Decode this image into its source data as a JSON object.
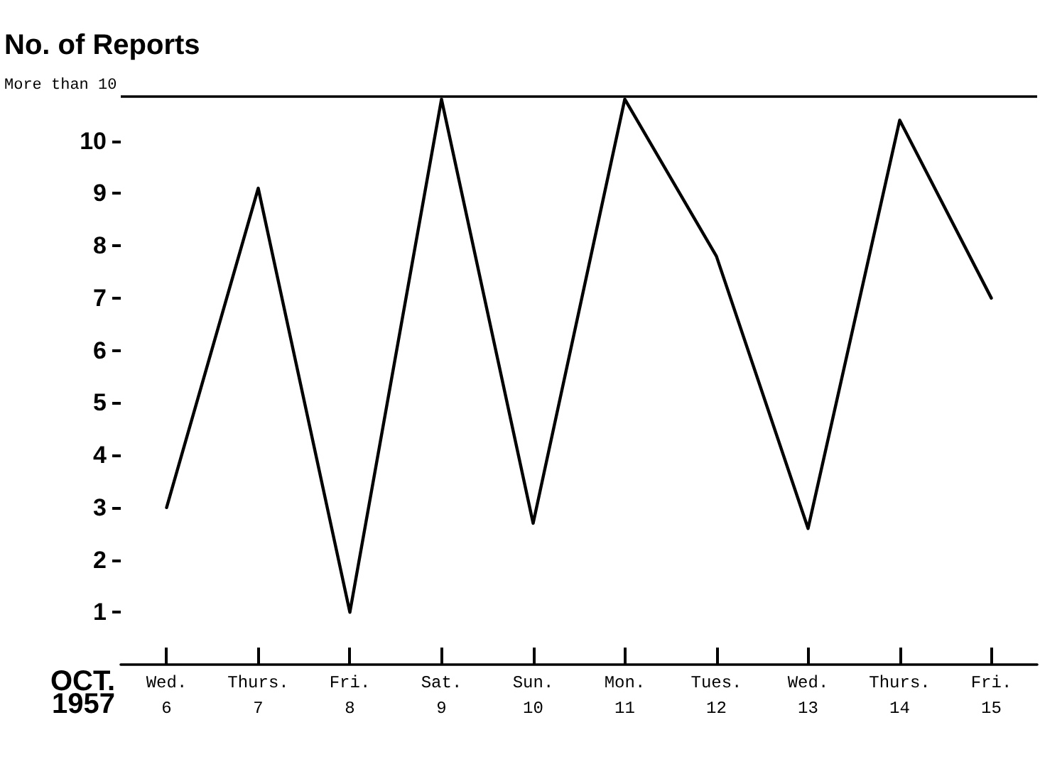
{
  "chart_data": {
    "type": "line",
    "ylabel": "No. of Reports",
    "xlabel": "OCT.\n1957",
    "categories": [
      "Wed.\n6",
      "Thurs.\n7",
      "Fri.\n8",
      "Sat.\n9",
      "Sun.\n10",
      "Mon.\n11",
      "Tues.\n12",
      "Wed.\n13",
      "Thurs.\n14",
      "Fri.\n15"
    ],
    "series": [
      {
        "color": "#000000",
        "values": [
          3.0,
          9.1,
          1.0,
          10.8,
          2.7,
          10.8,
          7.8,
          2.6,
          10.4,
          7.0
        ]
      }
    ],
    "ylim": [
      0,
      10.85
    ],
    "yticks": [
      1,
      2,
      3,
      4,
      5,
      6,
      7,
      8,
      9,
      10
    ],
    "ref_lines": [
      {
        "axis": "y",
        "value": 10.85,
        "label": "More than 10",
        "color": "#000000"
      }
    ],
    "grid": false,
    "marker": "none",
    "line_style": "solid"
  }
}
